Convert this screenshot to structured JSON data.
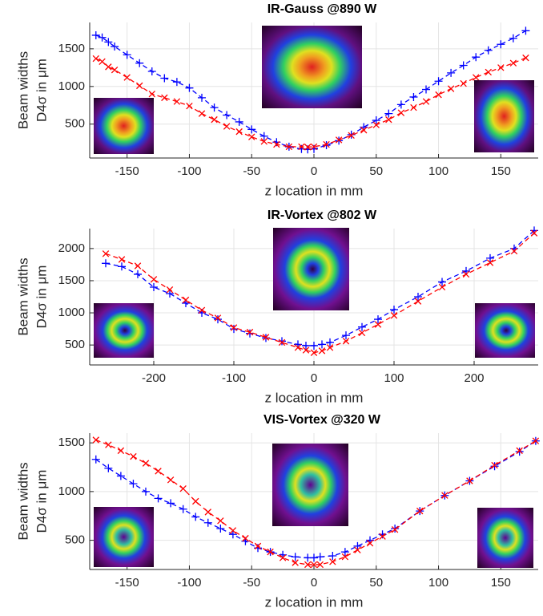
{
  "chart_data": [
    {
      "type": "line",
      "title": "IR-Gauss @890 W",
      "xlabel": "z location in mm",
      "ylabel": [
        "Beam widths",
        "D4σ in μm"
      ],
      "xlim": [
        -180,
        180
      ],
      "xticks": [
        -150,
        -100,
        -50,
        0,
        50,
        100,
        150
      ],
      "ylim": [
        50,
        1850
      ],
      "yticks": [
        500,
        1000,
        1500
      ],
      "grid": true,
      "x": [
        -175,
        -170,
        -165,
        -160,
        -150,
        -140,
        -130,
        -120,
        -110,
        -100,
        -90,
        -80,
        -70,
        -60,
        -50,
        -40,
        -30,
        -20,
        -10,
        -5,
        0,
        10,
        20,
        30,
        40,
        50,
        60,
        70,
        80,
        90,
        100,
        110,
        120,
        130,
        140,
        150,
        160,
        170
      ],
      "series": [
        {
          "color": "#0000ff",
          "marker": "+",
          "values": [
            1680,
            1650,
            1590,
            1530,
            1420,
            1310,
            1200,
            1110,
            1060,
            980,
            850,
            720,
            620,
            530,
            430,
            340,
            260,
            200,
            170,
            165,
            170,
            220,
            280,
            360,
            460,
            550,
            640,
            760,
            860,
            960,
            1070,
            1180,
            1280,
            1390,
            1480,
            1560,
            1640,
            1740
          ]
        },
        {
          "color": "#ff0000",
          "marker": "x",
          "values": [
            1370,
            1330,
            1260,
            1220,
            1120,
            1010,
            900,
            850,
            800,
            740,
            640,
            560,
            470,
            400,
            330,
            270,
            230,
            200,
            200,
            195,
            200,
            230,
            290,
            350,
            420,
            490,
            560,
            650,
            720,
            800,
            890,
            970,
            1040,
            1120,
            1190,
            1250,
            1310,
            1380
          ]
        }
      ]
    },
    {
      "type": "line",
      "title": "IR-Vortex @802 W",
      "xlabel": "z location in mm",
      "ylabel": [
        "Beam widths",
        "D4σ in μm"
      ],
      "xlim": [
        -280,
        280
      ],
      "xticks": [
        -200,
        -100,
        0,
        100,
        200
      ],
      "ylim": [
        190,
        2310
      ],
      "yticks": [
        500,
        1000,
        1500,
        2000
      ],
      "grid": true,
      "x": [
        -260,
        -240,
        -220,
        -200,
        -180,
        -160,
        -140,
        -120,
        -100,
        -80,
        -60,
        -40,
        -20,
        -10,
        0,
        10,
        20,
        40,
        60,
        80,
        100,
        130,
        160,
        190,
        220,
        250,
        275
      ],
      "series": [
        {
          "color": "#0000ff",
          "marker": "+",
          "values": [
            1770,
            1720,
            1600,
            1400,
            1300,
            1150,
            1000,
            900,
            750,
            680,
            610,
            560,
            510,
            490,
            490,
            510,
            540,
            650,
            780,
            900,
            1050,
            1250,
            1480,
            1650,
            1850,
            2000,
            2280
          ]
        },
        {
          "color": "#ff0000",
          "marker": "x",
          "values": [
            1920,
            1830,
            1730,
            1520,
            1360,
            1200,
            1040,
            920,
            770,
            700,
            620,
            540,
            460,
            420,
            380,
            410,
            460,
            560,
            690,
            820,
            960,
            1180,
            1400,
            1600,
            1780,
            1960,
            2240
          ]
        }
      ]
    },
    {
      "type": "line",
      "title": "VIS-Vortex @320 W",
      "xlabel": "z location in mm",
      "ylabel": [
        "Beam widths",
        "D4σ in μm"
      ],
      "xlim": [
        -180,
        180
      ],
      "xticks": [
        -150,
        -100,
        -50,
        0,
        50,
        100,
        150
      ],
      "ylim": [
        200,
        1600
      ],
      "yticks": [
        500,
        1000,
        1500
      ],
      "grid": true,
      "x": [
        -175,
        -165,
        -155,
        -145,
        -135,
        -125,
        -115,
        -105,
        -95,
        -85,
        -75,
        -65,
        -55,
        -45,
        -35,
        -25,
        -15,
        -5,
        0,
        5,
        15,
        25,
        35,
        45,
        55,
        65,
        85,
        105,
        125,
        145,
        165,
        178
      ],
      "series": [
        {
          "color": "#0000ff",
          "marker": "+",
          "values": [
            1330,
            1240,
            1160,
            1080,
            1000,
            930,
            880,
            820,
            740,
            680,
            620,
            560,
            490,
            420,
            380,
            350,
            330,
            320,
            320,
            330,
            340,
            380,
            440,
            500,
            560,
            620,
            800,
            960,
            1110,
            1260,
            1410,
            1520
          ]
        },
        {
          "color": "#ff0000",
          "marker": "x",
          "values": [
            1530,
            1480,
            1420,
            1360,
            1290,
            1210,
            1120,
            1030,
            900,
            790,
            700,
            600,
            520,
            440,
            380,
            320,
            270,
            250,
            250,
            250,
            280,
            330,
            400,
            470,
            540,
            610,
            800,
            960,
            1110,
            1270,
            1420,
            1520
          ]
        }
      ]
    }
  ]
}
